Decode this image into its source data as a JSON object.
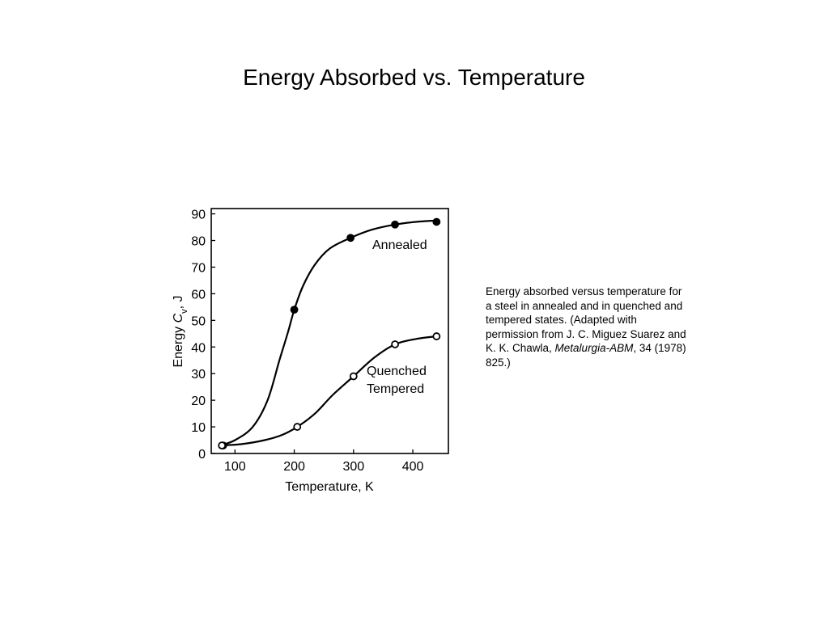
{
  "slide": {
    "title": "Energy Absorbed vs. Temperature"
  },
  "caption": {
    "text_before": "Energy absorbed versus temperature for a steel in annealed and in quenched and tempered states. (Adapted with permission from J. C. Miguez Suarez and K. K. Chawla, ",
    "journal": "Metalurgia-ABM",
    "text_after": ", 34 (1978) 825.)"
  },
  "chart_data": {
    "type": "line",
    "title": "",
    "xlabel": "Temperature, K",
    "ylabel_prefix": "Energy ",
    "ylabel_symbol": "C",
    "ylabel_subscript": "v",
    "ylabel_suffix": ", J",
    "xlim": [
      60,
      460
    ],
    "ylim": [
      0,
      92
    ],
    "x_ticks": [
      100,
      200,
      300,
      400
    ],
    "y_ticks": [
      0,
      10,
      20,
      30,
      40,
      50,
      60,
      70,
      80,
      90
    ],
    "grid": false,
    "series": [
      {
        "name": "Annealed",
        "marker": "filled-circle",
        "points": [
          [
            80,
            3
          ],
          [
            200,
            54
          ],
          [
            295,
            81
          ],
          [
            370,
            86
          ],
          [
            440,
            87
          ]
        ],
        "curve": [
          [
            75,
            3
          ],
          [
            100,
            5
          ],
          [
            130,
            10
          ],
          [
            155,
            20
          ],
          [
            175,
            35
          ],
          [
            190,
            46
          ],
          [
            200,
            54
          ],
          [
            215,
            63
          ],
          [
            235,
            71
          ],
          [
            260,
            77
          ],
          [
            295,
            81
          ],
          [
            330,
            84
          ],
          [
            370,
            86
          ],
          [
            405,
            87
          ],
          [
            440,
            87.5
          ]
        ]
      },
      {
        "name_line1": "Quenched",
        "name_line2": "Tempered",
        "marker": "open-circle",
        "points": [
          [
            78,
            3
          ],
          [
            205,
            10
          ],
          [
            300,
            29
          ],
          [
            370,
            41
          ],
          [
            440,
            44
          ]
        ],
        "curve": [
          [
            75,
            3
          ],
          [
            110,
            3.5
          ],
          [
            150,
            5
          ],
          [
            180,
            7
          ],
          [
            205,
            10
          ],
          [
            235,
            15
          ],
          [
            265,
            22
          ],
          [
            300,
            29
          ],
          [
            335,
            36
          ],
          [
            370,
            41
          ],
          [
            405,
            43
          ],
          [
            440,
            44
          ]
        ]
      }
    ]
  }
}
